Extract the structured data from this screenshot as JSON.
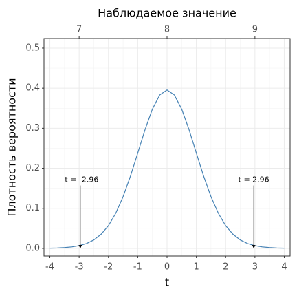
{
  "chart_data": {
    "type": "line",
    "title": "Наблюдаемое значение",
    "x_label": "t",
    "y_label": "Плотность вероятности",
    "x": [
      -4,
      -3.75,
      -3.5,
      -3.25,
      -3,
      -2.75,
      -2.5,
      -2.25,
      -2,
      -1.75,
      -1.5,
      -1.25,
      -1,
      -0.75,
      -0.5,
      -0.25,
      0,
      0.25,
      0.5,
      0.75,
      1,
      1.25,
      1.5,
      1.75,
      2,
      2.25,
      2.5,
      2.75,
      3,
      3.25,
      3.5,
      3.75,
      4
    ],
    "series": [
      {
        "color": "#4682b4",
        "values": [
          0.0005,
          0.001,
          0.002,
          0.0037,
          0.0068,
          0.0121,
          0.021,
          0.0353,
          0.0568,
          0.0877,
          0.129,
          0.1801,
          0.238,
          0.2966,
          0.3478,
          0.3831,
          0.3956,
          0.3831,
          0.3478,
          0.2966,
          0.238,
          0.1801,
          0.129,
          0.0877,
          0.0568,
          0.0353,
          0.021,
          0.0121,
          0.0068,
          0.0037,
          0.002,
          0.001,
          0.0005
        ]
      }
    ],
    "annotations": [
      {
        "label": "-t = -2.96",
        "x": -2.96,
        "y": 0.157
      },
      {
        "label": "t = 2.96",
        "x": 2.96,
        "y": 0.157
      }
    ],
    "xlim": [
      -4.2,
      4.2
    ],
    "xticks": [
      -4,
      -3,
      -2,
      -1,
      0,
      1,
      2,
      3,
      4
    ],
    "x2lim": [
      6.6,
      9.4
    ],
    "x2ticks": [
      7,
      8,
      9
    ],
    "ylim": [
      -0.019,
      0.524
    ],
    "yticks": [
      {
        "value": 0,
        "label": "0.0"
      },
      {
        "value": 0.1,
        "label": "0.1"
      },
      {
        "value": 0.2,
        "label": "0.2"
      },
      {
        "value": 0.3,
        "label": "0.3"
      },
      {
        "value": 0.4,
        "label": "0.4"
      },
      {
        "value": 0.5,
        "label": "0.5"
      }
    ],
    "grid": true
  }
}
